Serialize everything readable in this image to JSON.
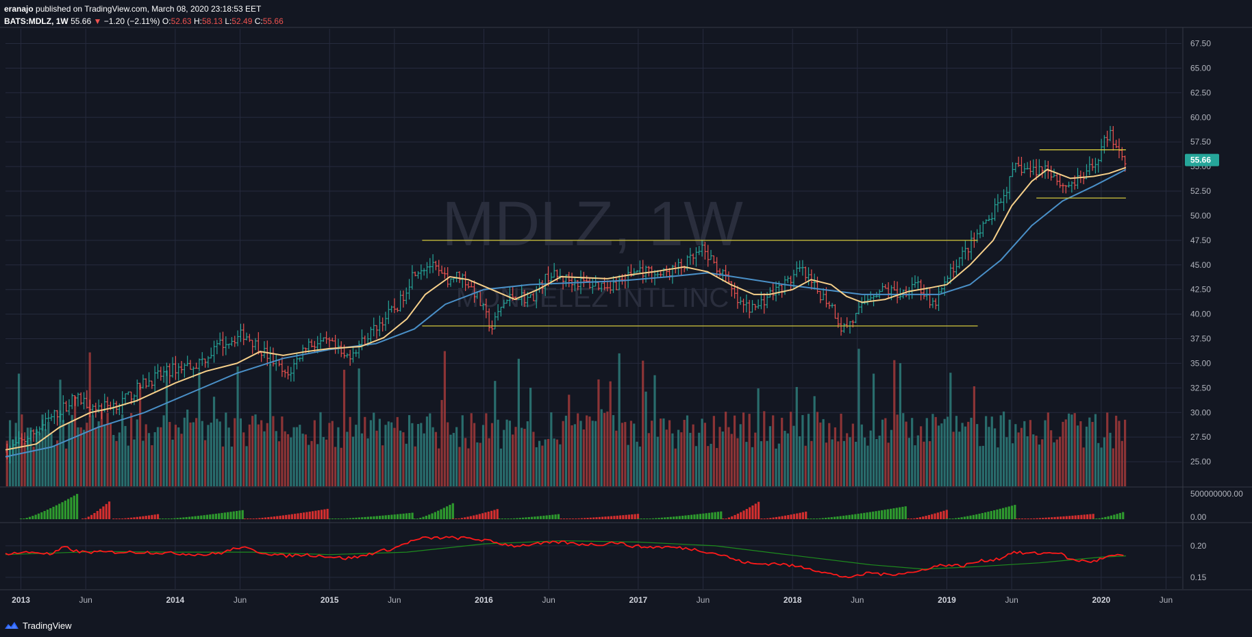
{
  "header": {
    "publisher": "eranajo",
    "published_text": "published on TradingView.com, March 08, 2020 23:18:53 EET",
    "symbol": "BATS:MDLZ, 1W",
    "last": "55.66",
    "change": "−1.20 (−2.11%)",
    "o_label": "O:",
    "o_value": "52.63",
    "h_label": "H:",
    "h_value": "58.13",
    "l_label": "L:",
    "l_value": "52.49",
    "c_label": "C:",
    "c_value": "55.66"
  },
  "watermark": {
    "line1": "MDLZ, 1W",
    "line2": "MONDELEZ INTL INC"
  },
  "footer": {
    "brand": "TradingView"
  },
  "colors": {
    "background": "#131722",
    "grid": "#262b3e",
    "up": "#26a69a",
    "down": "#ef5350",
    "vol_up": "#2e7d7a",
    "vol_down": "#a23a3a",
    "ma_fast": "#f7d08a",
    "ma_slow": "#4a90c8",
    "levels": "#d4c93c",
    "osc_line": "#ff1a1a",
    "osc_signal": "#1e8c1e",
    "last_price_bg": "#26a69a"
  },
  "chart_data": [
    {
      "type": "candlestick",
      "interval": "1W",
      "symbol": "BATS:MDLZ",
      "y_ticks": [
        "67.50",
        "65.00",
        "62.50",
        "60.00",
        "57.50",
        "55.00",
        "52.50",
        "50.00",
        "47.50",
        "45.00",
        "42.50",
        "40.00",
        "37.50",
        "35.00",
        "32.50",
        "30.00",
        "27.50",
        "25.00"
      ],
      "ylim": [
        22.5,
        69.0
      ],
      "last_price_label": "55.66",
      "x_ticks": [
        {
          "label": "2013",
          "t": 2013.0
        },
        {
          "label": "Jun",
          "t": 2013.42
        },
        {
          "label": "2014",
          "t": 2014.0
        },
        {
          "label": "Jun",
          "t": 2014.42
        },
        {
          "label": "2015",
          "t": 2015.0
        },
        {
          "label": "Jun",
          "t": 2015.42
        },
        {
          "label": "2016",
          "t": 2016.0
        },
        {
          "label": "Jun",
          "t": 2016.42
        },
        {
          "label": "2017",
          "t": 2017.0
        },
        {
          "label": "Jun",
          "t": 2017.42
        },
        {
          "label": "2018",
          "t": 2018.0
        },
        {
          "label": "Jun",
          "t": 2018.42
        },
        {
          "label": "2019",
          "t": 2019.0
        },
        {
          "label": "Jun",
          "t": 2019.42
        },
        {
          "label": "2020",
          "t": 2020.0
        },
        {
          "label": "Jun",
          "t": 2020.42
        }
      ],
      "xlim": [
        2012.9,
        2020.52
      ],
      "price_path": [
        [
          2012.9,
          26.0
        ],
        [
          2013.05,
          27.5
        ],
        [
          2013.2,
          29.5
        ],
        [
          2013.35,
          31.5
        ],
        [
          2013.5,
          30.5
        ],
        [
          2013.65,
          31.0
        ],
        [
          2013.8,
          33.0
        ],
        [
          2014.0,
          34.5
        ],
        [
          2014.15,
          35.0
        ],
        [
          2014.3,
          37.0
        ],
        [
          2014.45,
          38.0
        ],
        [
          2014.55,
          36.5
        ],
        [
          2014.65,
          35.0
        ],
        [
          2014.72,
          33.5
        ],
        [
          2014.85,
          37.0
        ],
        [
          2015.0,
          37.0
        ],
        [
          2015.1,
          35.5
        ],
        [
          2015.2,
          37.0
        ],
        [
          2015.32,
          39.0
        ],
        [
          2015.45,
          41.0
        ],
        [
          2015.55,
          44.5
        ],
        [
          2015.65,
          45.0
        ],
        [
          2015.75,
          43.5
        ],
        [
          2015.85,
          44.0
        ],
        [
          2015.95,
          42.0
        ],
        [
          2016.05,
          38.5
        ],
        [
          2016.12,
          41.0
        ],
        [
          2016.2,
          42.0
        ],
        [
          2016.3,
          41.5
        ],
        [
          2016.42,
          44.0
        ],
        [
          2016.55,
          43.5
        ],
        [
          2016.7,
          43.0
        ],
        [
          2016.85,
          43.0
        ],
        [
          2017.0,
          44.5
        ],
        [
          2017.15,
          44.0
        ],
        [
          2017.3,
          45.0
        ],
        [
          2017.42,
          46.5
        ],
        [
          2017.55,
          44.0
        ],
        [
          2017.65,
          41.0
        ],
        [
          2017.75,
          40.5
        ],
        [
          2017.85,
          42.0
        ],
        [
          2017.95,
          43.0
        ],
        [
          2018.05,
          44.5
        ],
        [
          2018.15,
          42.5
        ],
        [
          2018.25,
          41.0
        ],
        [
          2018.32,
          38.5
        ],
        [
          2018.4,
          39.5
        ],
        [
          2018.5,
          42.0
        ],
        [
          2018.6,
          42.5
        ],
        [
          2018.7,
          42.0
        ],
        [
          2018.8,
          43.5
        ],
        [
          2018.9,
          40.5
        ],
        [
          2018.97,
          42.5
        ],
        [
          2019.05,
          45.0
        ],
        [
          2019.15,
          47.0
        ],
        [
          2019.25,
          49.0
        ],
        [
          2019.35,
          51.5
        ],
        [
          2019.45,
          55.0
        ],
        [
          2019.55,
          54.5
        ],
        [
          2019.65,
          55.0
        ],
        [
          2019.75,
          53.0
        ],
        [
          2019.85,
          53.5
        ],
        [
          2019.95,
          55.0
        ],
        [
          2020.05,
          58.5
        ],
        [
          2020.12,
          56.5
        ],
        [
          2020.16,
          55.66
        ]
      ],
      "ma_fast_path": [
        [
          2012.9,
          26.2
        ],
        [
          2013.1,
          26.8
        ],
        [
          2013.25,
          28.5
        ],
        [
          2013.45,
          30.0
        ],
        [
          2013.6,
          30.5
        ],
        [
          2013.75,
          31.2
        ],
        [
          2014.0,
          33.0
        ],
        [
          2014.2,
          34.2
        ],
        [
          2014.4,
          35.0
        ],
        [
          2014.55,
          36.2
        ],
        [
          2014.7,
          35.8
        ],
        [
          2014.85,
          36.2
        ],
        [
          2015.0,
          36.5
        ],
        [
          2015.2,
          36.7
        ],
        [
          2015.35,
          37.6
        ],
        [
          2015.5,
          39.5
        ],
        [
          2015.62,
          42.0
        ],
        [
          2015.78,
          43.8
        ],
        [
          2015.9,
          43.5
        ],
        [
          2016.05,
          42.5
        ],
        [
          2016.2,
          41.5
        ],
        [
          2016.35,
          42.5
        ],
        [
          2016.5,
          43.8
        ],
        [
          2016.65,
          43.7
        ],
        [
          2016.8,
          43.6
        ],
        [
          2016.95,
          44.0
        ],
        [
          2017.1,
          44.3
        ],
        [
          2017.3,
          44.8
        ],
        [
          2017.45,
          44.3
        ],
        [
          2017.6,
          43.0
        ],
        [
          2017.75,
          42.0
        ],
        [
          2017.85,
          42.0
        ],
        [
          2018.0,
          42.5
        ],
        [
          2018.12,
          43.5
        ],
        [
          2018.25,
          43.0
        ],
        [
          2018.35,
          41.8
        ],
        [
          2018.45,
          41.2
        ],
        [
          2018.6,
          41.5
        ],
        [
          2018.75,
          42.3
        ],
        [
          2018.9,
          42.7
        ],
        [
          2019.0,
          43.0
        ],
        [
          2019.15,
          45.0
        ],
        [
          2019.3,
          47.5
        ],
        [
          2019.42,
          51.0
        ],
        [
          2019.55,
          53.5
        ],
        [
          2019.65,
          54.7
        ],
        [
          2019.8,
          53.8
        ],
        [
          2019.95,
          54.0
        ],
        [
          2020.05,
          54.3
        ],
        [
          2020.16,
          54.9
        ]
      ],
      "ma_slow_path": [
        [
          2012.9,
          25.5
        ],
        [
          2013.2,
          26.5
        ],
        [
          2013.5,
          28.5
        ],
        [
          2013.8,
          30.0
        ],
        [
          2014.1,
          32.0
        ],
        [
          2014.4,
          34.0
        ],
        [
          2014.7,
          35.5
        ],
        [
          2015.0,
          36.4
        ],
        [
          2015.3,
          37.0
        ],
        [
          2015.55,
          38.5
        ],
        [
          2015.75,
          41.0
        ],
        [
          2016.0,
          42.5
        ],
        [
          2016.3,
          43.0
        ],
        [
          2016.6,
          43.2
        ],
        [
          2016.9,
          43.4
        ],
        [
          2017.2,
          43.8
        ],
        [
          2017.45,
          44.2
        ],
        [
          2017.7,
          43.6
        ],
        [
          2017.95,
          43.0
        ],
        [
          2018.2,
          42.5
        ],
        [
          2018.45,
          42.0
        ],
        [
          2018.7,
          42.0
        ],
        [
          2018.95,
          42.0
        ],
        [
          2019.15,
          43.0
        ],
        [
          2019.35,
          45.5
        ],
        [
          2019.55,
          49.0
        ],
        [
          2019.75,
          51.5
        ],
        [
          2019.95,
          53.0
        ],
        [
          2020.16,
          54.7
        ]
      ],
      "levels": [
        {
          "price": 47.5,
          "from": 2015.6,
          "to": 2019.2
        },
        {
          "price": 38.8,
          "from": 2015.6,
          "to": 2019.2
        },
        {
          "price": 56.7,
          "from": 2019.6,
          "to": 2020.16
        },
        {
          "price": 51.8,
          "from": 2019.58,
          "to": 2020.16
        }
      ],
      "volume_axis_max_data_units": 30
    },
    {
      "type": "bar",
      "pane": "volume-oscillator",
      "y_ticks": [
        "500000000.00",
        "0.00"
      ],
      "bursts": [
        {
          "from": 2013.0,
          "to": 2013.38,
          "sign": "up",
          "peak": 1.0
        },
        {
          "from": 2013.4,
          "to": 2013.58,
          "sign": "down",
          "peak": 0.7
        },
        {
          "from": 2013.6,
          "to": 2013.9,
          "sign": "down",
          "peak": 0.2
        },
        {
          "from": 2013.9,
          "to": 2014.45,
          "sign": "up",
          "peak": 0.35
        },
        {
          "from": 2014.45,
          "to": 2015.0,
          "sign": "down",
          "peak": 0.4
        },
        {
          "from": 2015.0,
          "to": 2015.55,
          "sign": "up",
          "peak": 0.25
        },
        {
          "from": 2015.55,
          "to": 2015.8,
          "sign": "up",
          "peak": 0.6
        },
        {
          "from": 2015.8,
          "to": 2016.1,
          "sign": "down",
          "peak": 0.4
        },
        {
          "from": 2016.1,
          "to": 2016.5,
          "sign": "up",
          "peak": 0.2
        },
        {
          "from": 2016.5,
          "to": 2017.0,
          "sign": "down",
          "peak": 0.2
        },
        {
          "from": 2017.0,
          "to": 2017.55,
          "sign": "up",
          "peak": 0.3
        },
        {
          "from": 2017.55,
          "to": 2017.78,
          "sign": "down",
          "peak": 0.65
        },
        {
          "from": 2017.78,
          "to": 2018.1,
          "sign": "down",
          "peak": 0.3
        },
        {
          "from": 2018.1,
          "to": 2018.75,
          "sign": "up",
          "peak": 0.5
        },
        {
          "from": 2018.75,
          "to": 2019.0,
          "sign": "down",
          "peak": 0.35
        },
        {
          "from": 2019.0,
          "to": 2019.45,
          "sign": "up",
          "peak": 0.55
        },
        {
          "from": 2019.45,
          "to": 2019.95,
          "sign": "down",
          "peak": 0.2
        },
        {
          "from": 2019.95,
          "to": 2020.16,
          "sign": "up",
          "peak": 0.3
        }
      ]
    },
    {
      "type": "line",
      "pane": "oscillator",
      "y_ticks": [
        "0.20",
        "0.15"
      ],
      "ylim": [
        0.14,
        0.226
      ],
      "series": [
        {
          "role": "main",
          "path": [
            [
              2012.9,
              0.188
            ],
            [
              2013.1,
              0.19
            ],
            [
              2013.2,
              0.186
            ],
            [
              2013.28,
              0.198
            ],
            [
              2013.38,
              0.19
            ],
            [
              2013.55,
              0.19
            ],
            [
              2013.8,
              0.19
            ],
            [
              2014.0,
              0.188
            ],
            [
              2014.2,
              0.186
            ],
            [
              2014.3,
              0.189
            ],
            [
              2014.42,
              0.198
            ],
            [
              2014.55,
              0.19
            ],
            [
              2014.7,
              0.184
            ],
            [
              2014.85,
              0.186
            ],
            [
              2015.0,
              0.183
            ],
            [
              2015.1,
              0.18
            ],
            [
              2015.2,
              0.183
            ],
            [
              2015.3,
              0.19
            ],
            [
              2015.42,
              0.196
            ],
            [
              2015.5,
              0.205
            ],
            [
              2015.6,
              0.212
            ],
            [
              2015.75,
              0.213
            ],
            [
              2015.9,
              0.212
            ],
            [
              2016.0,
              0.209
            ],
            [
              2016.1,
              0.204
            ],
            [
              2016.2,
              0.2
            ],
            [
              2016.35,
              0.203
            ],
            [
              2016.5,
              0.206
            ],
            [
              2016.6,
              0.203
            ],
            [
              2016.75,
              0.202
            ],
            [
              2016.85,
              0.206
            ],
            [
              2016.95,
              0.2
            ],
            [
              2017.05,
              0.198
            ],
            [
              2017.2,
              0.198
            ],
            [
              2017.35,
              0.195
            ],
            [
              2017.42,
              0.192
            ],
            [
              2017.55,
              0.185
            ],
            [
              2017.65,
              0.176
            ],
            [
              2017.75,
              0.171
            ],
            [
              2017.9,
              0.172
            ],
            [
              2018.0,
              0.168
            ],
            [
              2018.1,
              0.165
            ],
            [
              2018.2,
              0.158
            ],
            [
              2018.3,
              0.152
            ],
            [
              2018.4,
              0.15
            ],
            [
              2018.5,
              0.158
            ],
            [
              2018.6,
              0.154
            ],
            [
              2018.72,
              0.157
            ],
            [
              2018.8,
              0.158
            ],
            [
              2018.88,
              0.165
            ],
            [
              2018.98,
              0.17
            ],
            [
              2019.1,
              0.168
            ],
            [
              2019.2,
              0.175
            ],
            [
              2019.35,
              0.18
            ],
            [
              2019.42,
              0.19
            ],
            [
              2019.5,
              0.188
            ],
            [
              2019.62,
              0.188
            ],
            [
              2019.72,
              0.19
            ],
            [
              2019.8,
              0.178
            ],
            [
              2019.88,
              0.176
            ],
            [
              2019.95,
              0.175
            ],
            [
              2020.05,
              0.183
            ],
            [
              2020.16,
              0.185
            ]
          ]
        },
        {
          "role": "signal",
          "path": [
            [
              2012.9,
              0.186
            ],
            [
              2013.5,
              0.191
            ],
            [
              2014.0,
              0.19
            ],
            [
              2014.5,
              0.19
            ],
            [
              2015.0,
              0.186
            ],
            [
              2015.5,
              0.19
            ],
            [
              2016.0,
              0.203
            ],
            [
              2016.5,
              0.208
            ],
            [
              2017.0,
              0.206
            ],
            [
              2017.5,
              0.2
            ],
            [
              2018.0,
              0.185
            ],
            [
              2018.5,
              0.17
            ],
            [
              2018.85,
              0.163
            ],
            [
              2019.2,
              0.167
            ],
            [
              2019.6,
              0.173
            ],
            [
              2020.0,
              0.182
            ],
            [
              2020.16,
              0.184
            ]
          ]
        }
      ]
    }
  ]
}
